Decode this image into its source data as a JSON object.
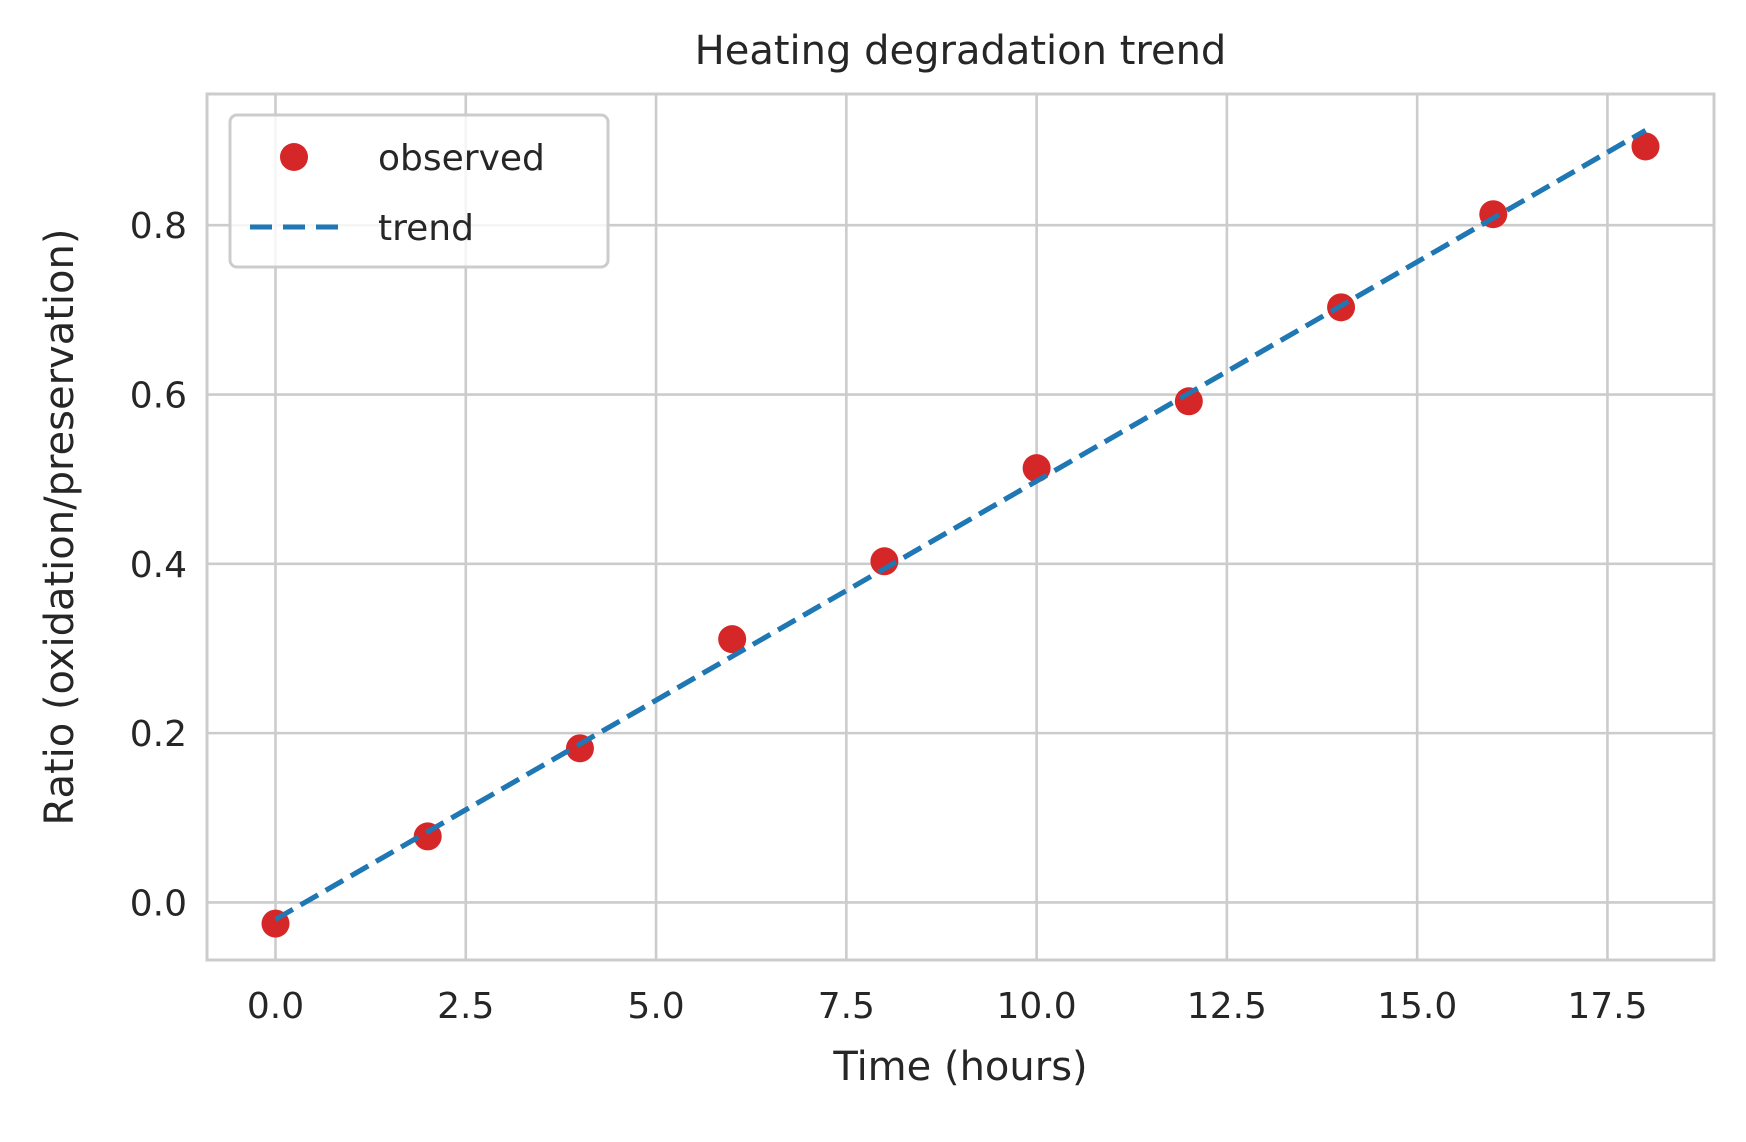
{
  "chart_data": {
    "type": "scatter",
    "title": "Heating degradation trend",
    "xlabel": "Time (hours)",
    "ylabel": "Ratio (oxidation/preservation)",
    "xlim": [
      -0.9,
      18.9
    ],
    "ylim": [
      -0.068,
      0.955
    ],
    "xticks": [
      0.0,
      2.5,
      5.0,
      7.5,
      10.0,
      12.5,
      15.0,
      17.5
    ],
    "xtick_labels": [
      "0.0",
      "2.5",
      "5.0",
      "7.5",
      "10.0",
      "12.5",
      "15.0",
      "17.5"
    ],
    "yticks": [
      0.0,
      0.2,
      0.4,
      0.6,
      0.8
    ],
    "ytick_labels": [
      "0.0",
      "0.2",
      "0.4",
      "0.6",
      "0.8"
    ],
    "grid": true,
    "legend_position": "top-left",
    "series": [
      {
        "name": "observed",
        "kind": "markers",
        "color": "#d62728",
        "x": [
          0,
          2,
          4,
          6,
          8,
          10,
          12,
          14,
          16,
          18
        ],
        "y": [
          -0.025,
          0.078,
          0.182,
          0.311,
          0.403,
          0.513,
          0.592,
          0.703,
          0.813,
          0.893
        ]
      },
      {
        "name": "trend",
        "kind": "dashed-line",
        "color": "#1f77b4",
        "x": [
          0,
          18
        ],
        "y": [
          -0.02,
          0.912
        ]
      }
    ]
  }
}
